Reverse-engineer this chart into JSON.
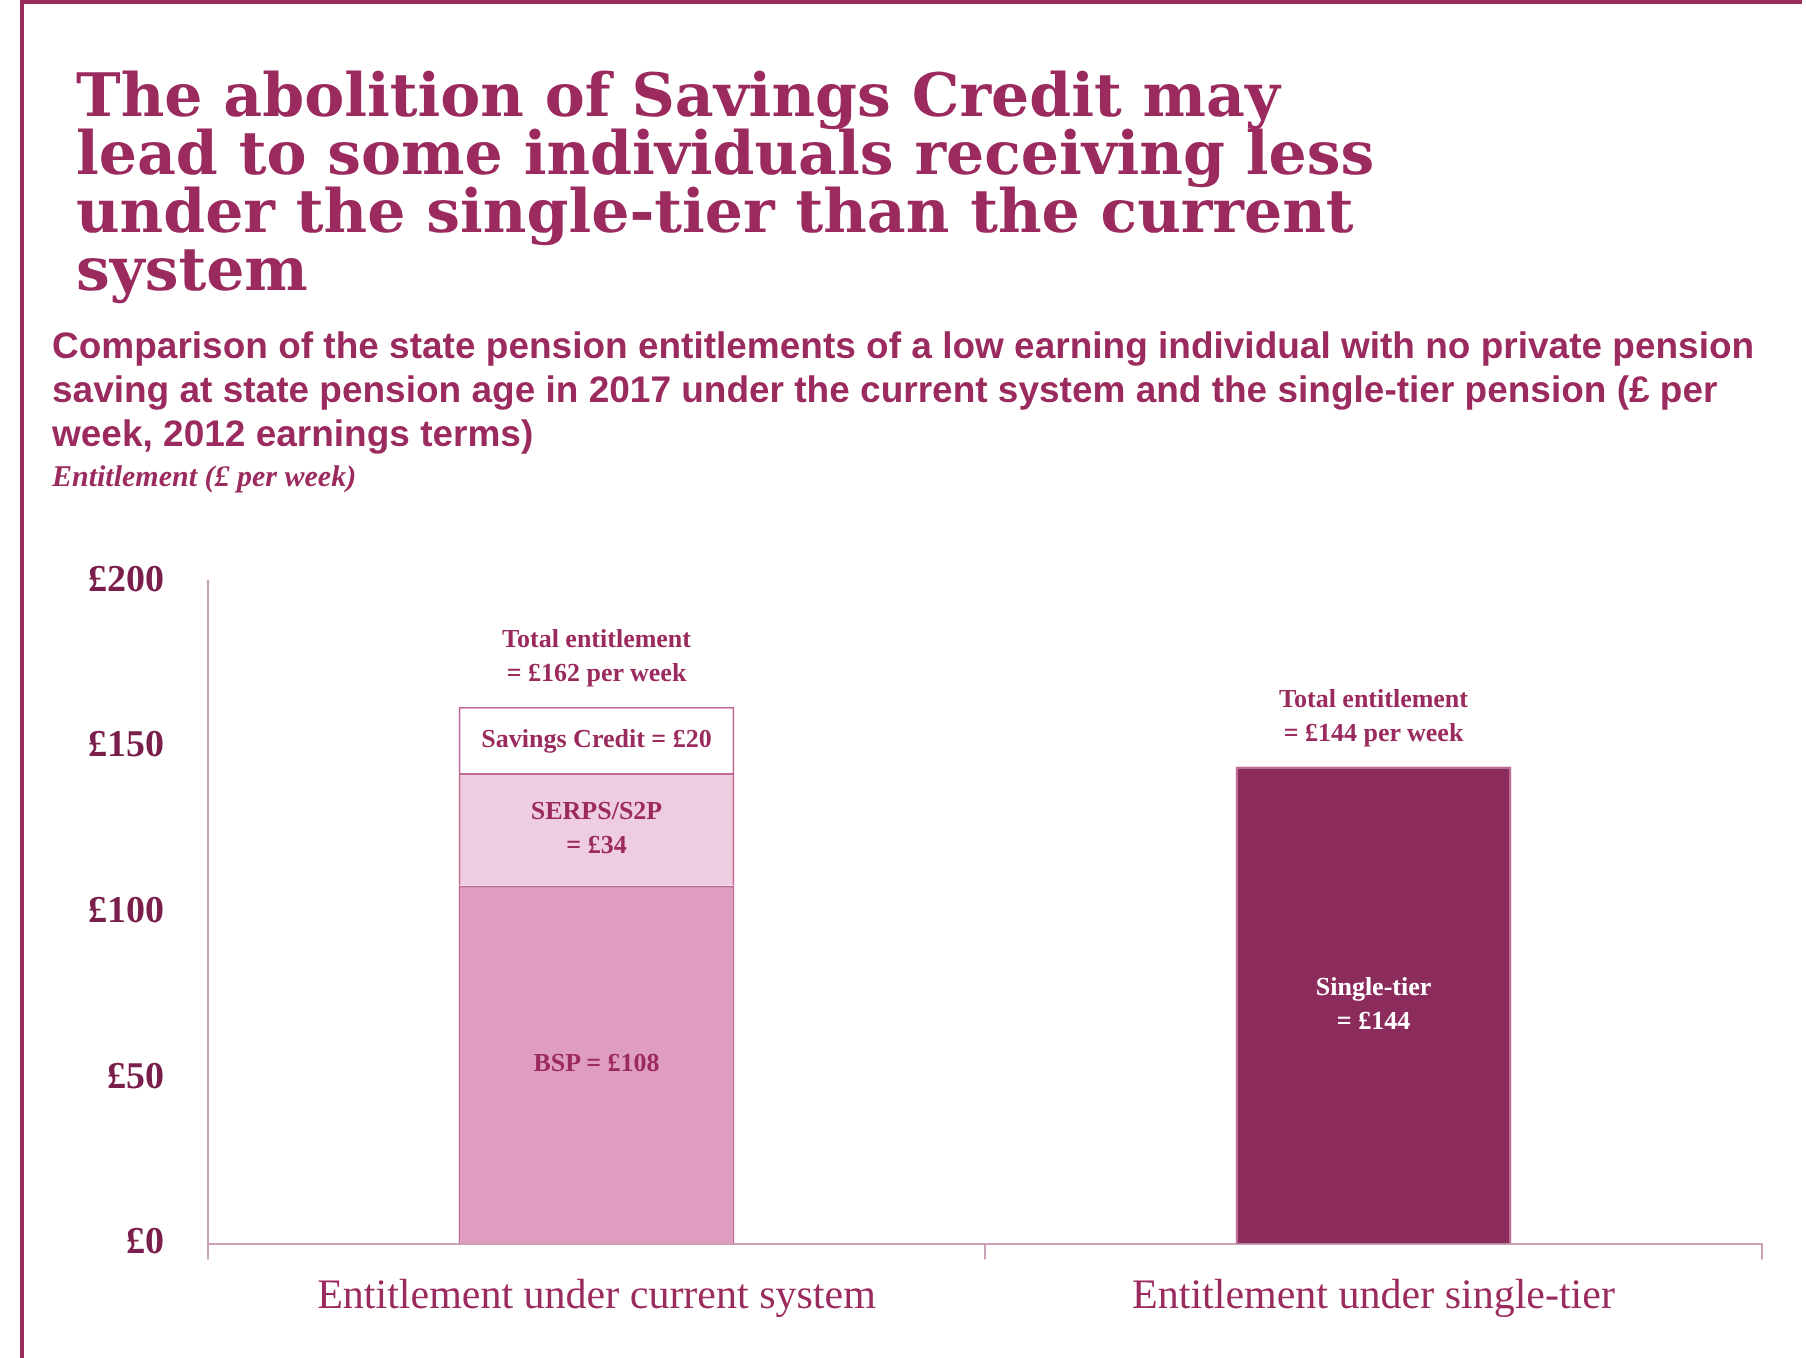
{
  "chart_data": {
    "type": "bar",
    "title": "The abolition of Savings Credit may lead to some individuals receiving less under the single-tier than the current system",
    "subtitle": "Comparison of the state pension entitlements of a low earning individual with no private pension saving at state pension age in 2017 under the current system and the single-tier pension (£ per week, 2012 earnings terms)",
    "ylabel": "Entitlement (£ per week)",
    "categories": [
      "Entitlement under current system",
      "Entitlement under single-tier"
    ],
    "stacked": true,
    "grid": false,
    "legend": false,
    "series": [
      {
        "color": "#df9dc0",
        "values": [
          108,
          null
        ],
        "value_labels": [
          "BSP = £108",
          null
        ]
      },
      {
        "color": "#efcde0",
        "values": [
          34,
          null
        ],
        "value_labels": [
          "SERPS/S2P\n= £34",
          null
        ]
      },
      {
        "color": "#ffffff",
        "values": [
          20,
          null
        ],
        "value_labels": [
          "Savings Credit = £20",
          null
        ]
      },
      {
        "color": "#8b2c5c",
        "values": [
          null,
          144
        ],
        "value_labels": [
          null,
          "Single-tier\n= £144"
        ]
      }
    ],
    "totals": [
      "Total entitlement\n= £162 per week",
      "Total entitlement\n= £144 per week"
    ],
    "ylim": [
      0,
      200
    ],
    "yticks": [
      {
        "value": 0,
        "label": "£0"
      },
      {
        "value": 50,
        "label": "£50"
      },
      {
        "value": 100,
        "label": "£100"
      },
      {
        "value": 150,
        "label": "£150"
      },
      {
        "value": 200,
        "label": "£200"
      }
    ]
  }
}
